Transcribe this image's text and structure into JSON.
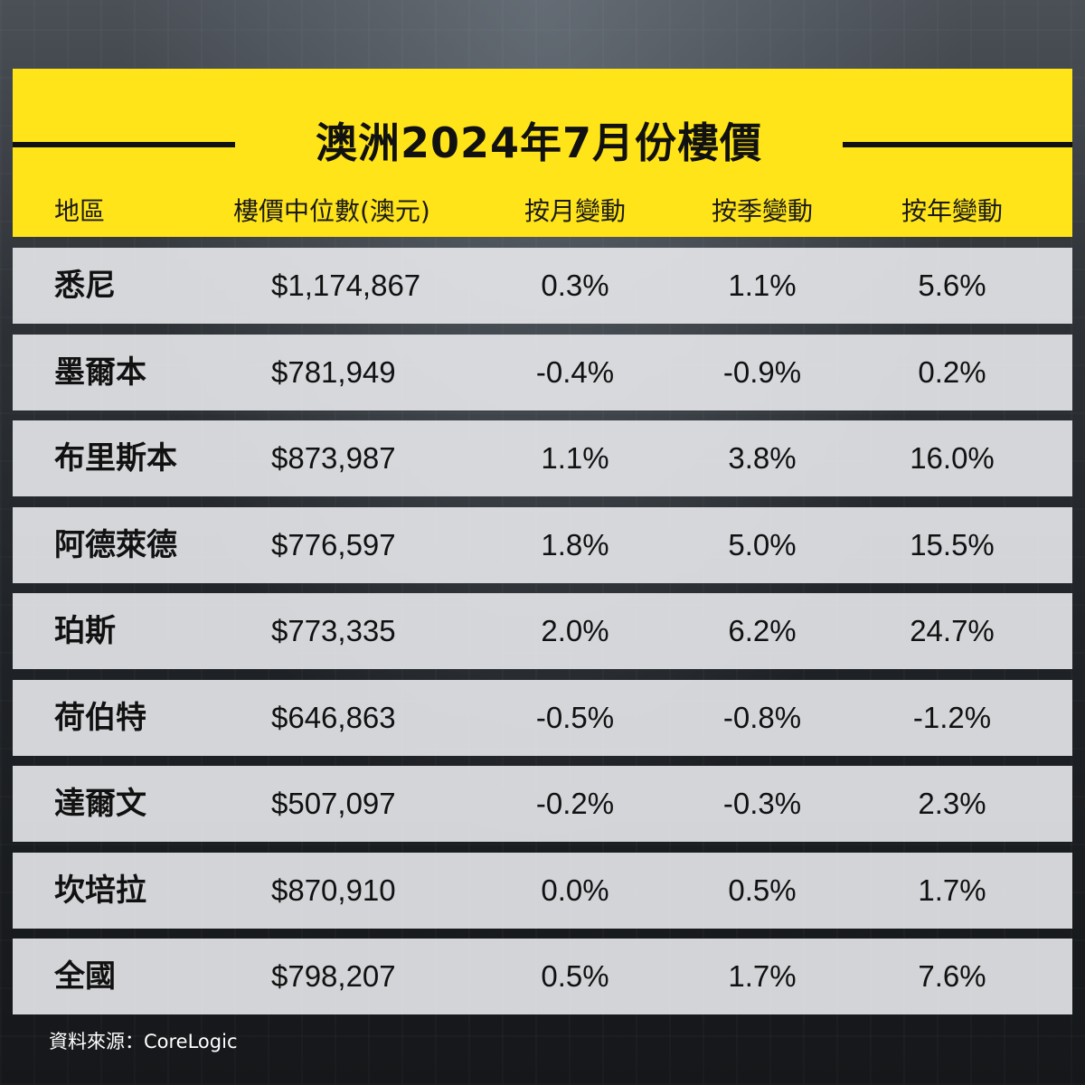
{
  "title": "澳洲2024年7月份樓價",
  "columns": [
    "地區",
    "樓價中位數(澳元)",
    "按月變動",
    "按季變動",
    "按年變動"
  ],
  "rows": [
    {
      "region": "悉尼",
      "price": "$1,174,867",
      "mom": "0.3%",
      "qoq": "1.1%",
      "yoy": "5.6%"
    },
    {
      "region": "墨爾本",
      "price": "$781,949",
      "mom": "-0.4%",
      "qoq": "-0.9%",
      "yoy": "0.2%"
    },
    {
      "region": "布里斯本",
      "price": "$873,987",
      "mom": "1.1%",
      "qoq": "3.8%",
      "yoy": "16.0%"
    },
    {
      "region": "阿德萊德",
      "price": "$776,597",
      "mom": "1.8%",
      "qoq": "5.0%",
      "yoy": "15.5%"
    },
    {
      "region": "珀斯",
      "price": "$773,335",
      "mom": "2.0%",
      "qoq": "6.2%",
      "yoy": "24.7%"
    },
    {
      "region": "荷伯特",
      "price": "$646,863",
      "mom": "-0.5%",
      "qoq": "-0.8%",
      "yoy": "-1.2%"
    },
    {
      "region": "達爾文",
      "price": "$507,097",
      "mom": "-0.2%",
      "qoq": "-0.3%",
      "yoy": "2.3%"
    },
    {
      "region": "坎培拉",
      "price": "$870,910",
      "mom": "0.0%",
      "qoq": "0.5%",
      "yoy": "1.7%"
    },
    {
      "region": "全國",
      "price": "$798,207",
      "mom": "0.5%",
      "qoq": "1.7%",
      "yoy": "7.6%"
    }
  ],
  "source": "資料來源：CoreLogic",
  "colors": {
    "header_bg": "#ffe419",
    "row_bg": "#e8e9ec",
    "text": "#111111"
  }
}
